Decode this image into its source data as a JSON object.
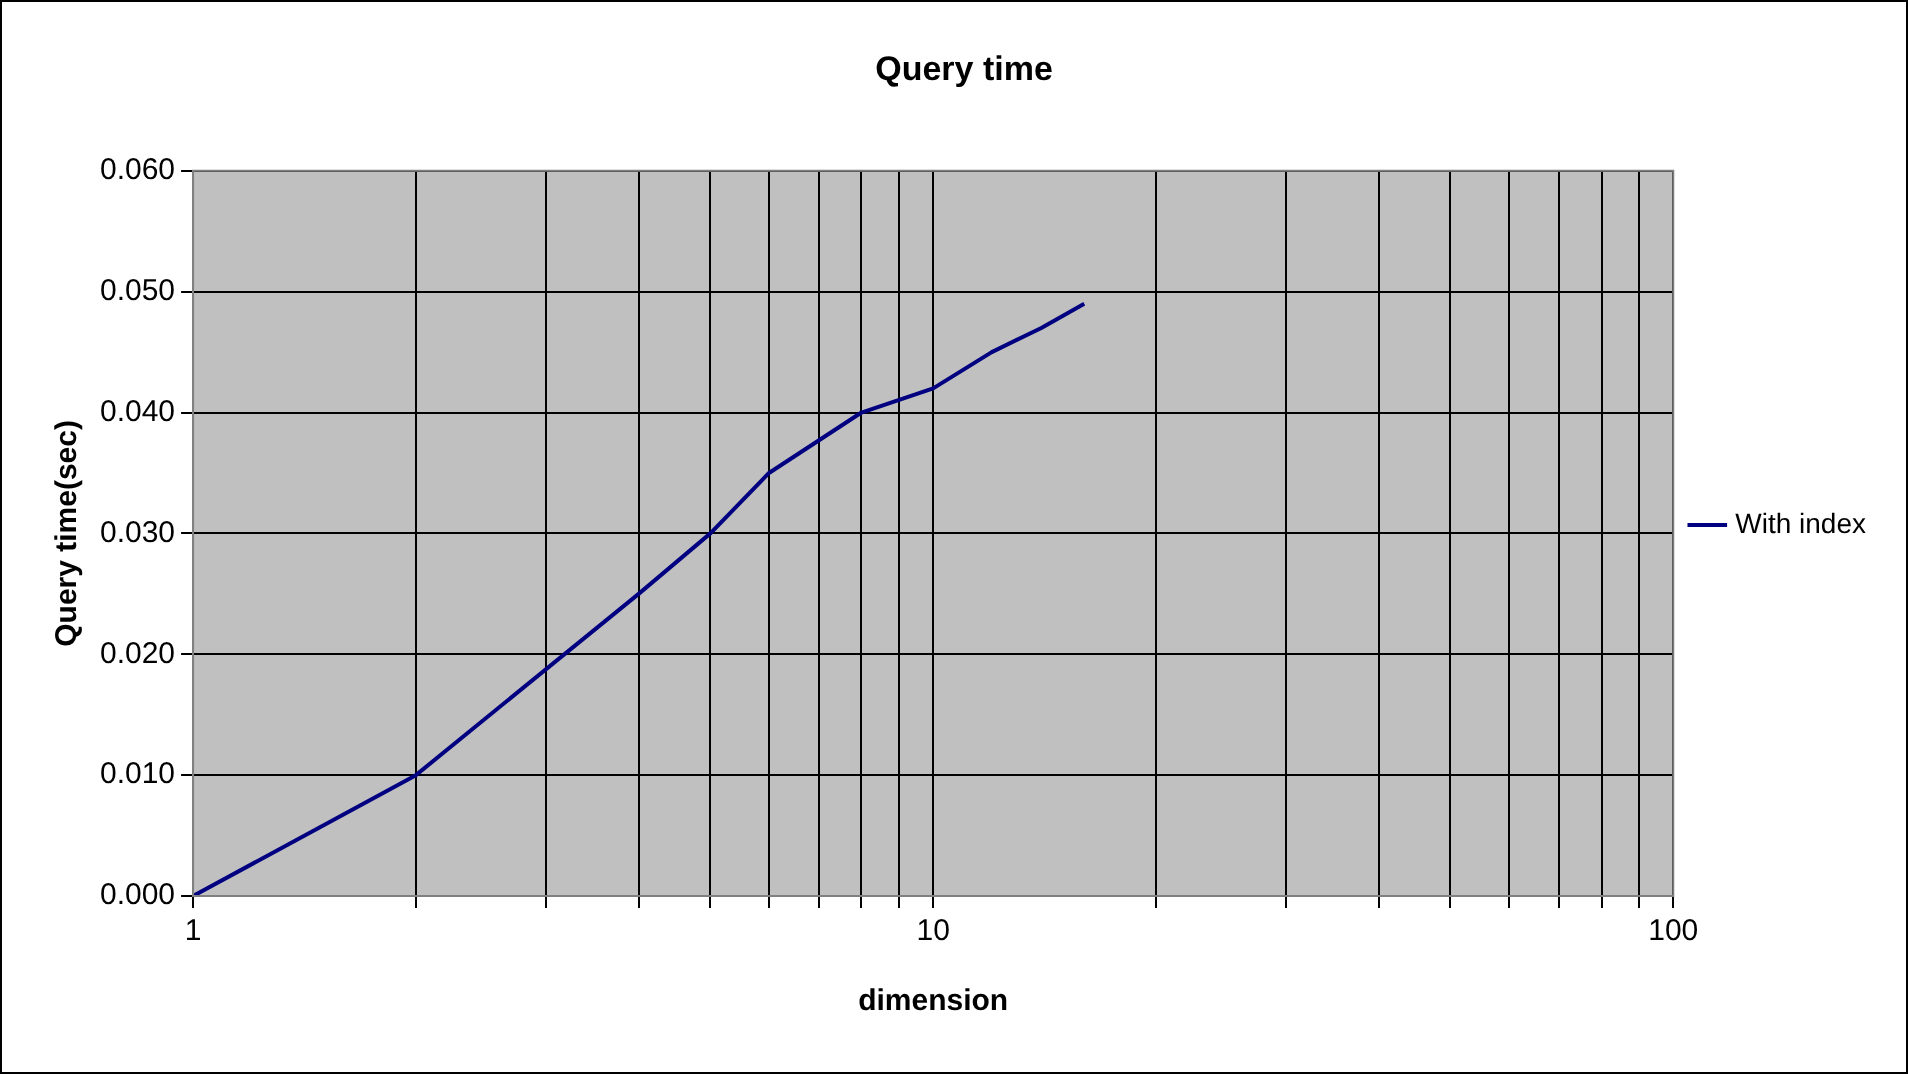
{
  "chart_data": {
    "type": "line",
    "title": "Query time",
    "xlabel": "dimension",
    "ylabel": "Query time(sec)",
    "x": [
      1,
      2,
      4,
      5,
      6,
      8,
      10,
      12,
      14,
      16
    ],
    "series": [
      {
        "name": "With index",
        "color": "#000080",
        "values": [
          0,
          0.01,
          0.025,
          0.03,
          0.035,
          0.04,
          0.042,
          0.045,
          0.047,
          0.049
        ]
      }
    ],
    "log": "x",
    "xlim": [
      1,
      100
    ],
    "xticks": [
      1,
      {
        "value": 2,
        "label": null
      },
      {
        "value": 3,
        "label": null
      },
      {
        "value": 4,
        "label": null
      },
      {
        "value": 5,
        "label": null
      },
      {
        "value": 6,
        "label": null
      },
      {
        "value": 7,
        "label": null
      },
      {
        "value": 8,
        "label": null
      },
      {
        "value": 9,
        "label": null
      },
      10,
      {
        "value": 20,
        "label": null
      },
      {
        "value": 30,
        "label": null
      },
      {
        "value": 40,
        "label": null
      },
      {
        "value": 50,
        "label": null
      },
      {
        "value": 60,
        "label": null
      },
      {
        "value": 70,
        "label": null
      },
      {
        "value": 80,
        "label": null
      },
      {
        "value": 90,
        "label": null
      },
      100
    ],
    "ylim": [
      0,
      0.06
    ],
    "yticks": [
      {
        "value": 0,
        "label": "0.000"
      },
      {
        "value": 0.01,
        "label": "0.010"
      },
      {
        "value": 0.02,
        "label": "0.020"
      },
      {
        "value": 0.03,
        "label": "0.030"
      },
      {
        "value": 0.04,
        "label": "0.040"
      },
      {
        "value": 0.05,
        "label": "0.050"
      },
      {
        "value": 0.06,
        "label": "0.060"
      }
    ],
    "grid": true,
    "legend": "right",
    "marker": "none",
    "line_style": "solid"
  }
}
